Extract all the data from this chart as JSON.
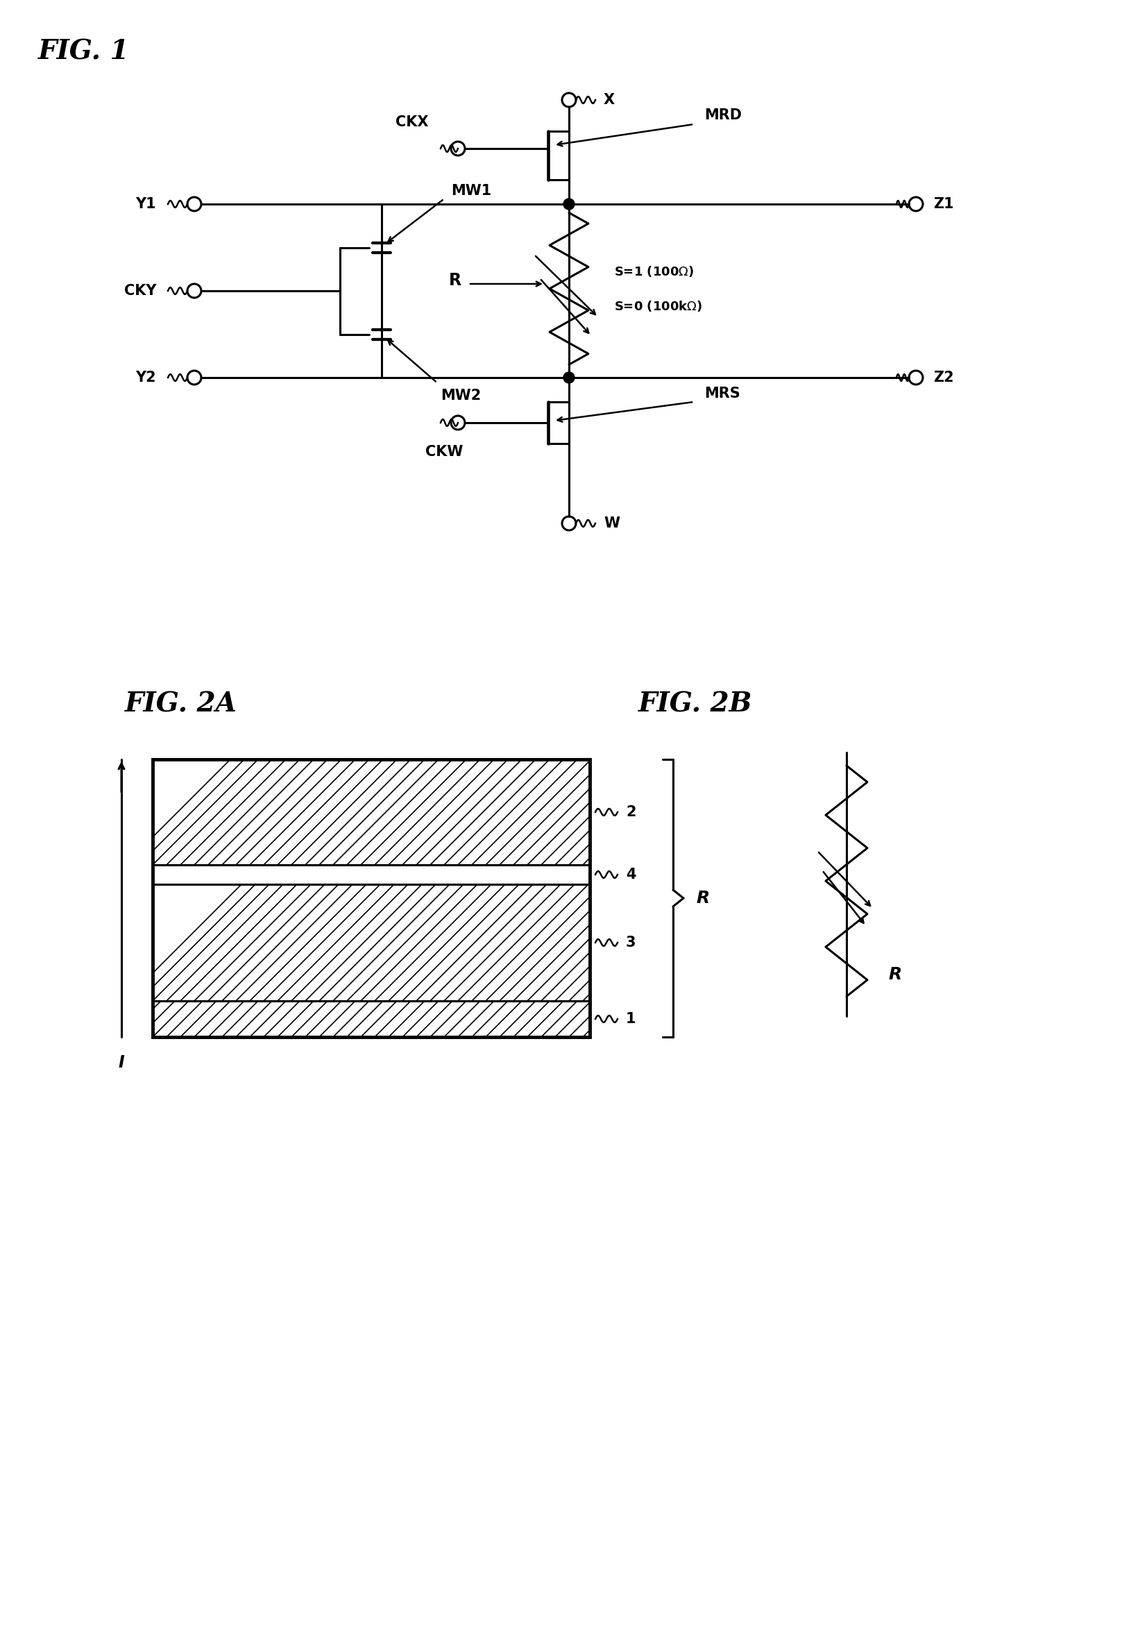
{
  "fig1_title": "FIG. 1",
  "fig2a_title": "FIG. 2A",
  "fig2b_title": "FIG. 2B",
  "bg_color": "#ffffff",
  "line_color": "#000000",
  "text_color": "#000000",
  "linewidth": 2.2,
  "label_fontsize": 15,
  "title_fontsize": 28,
  "annotation_fontsize": 13
}
